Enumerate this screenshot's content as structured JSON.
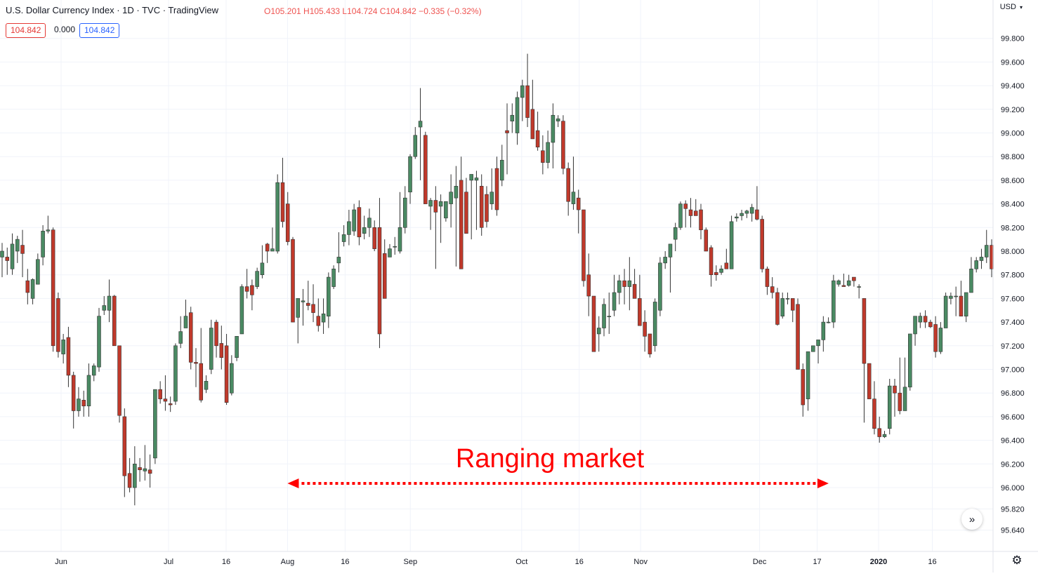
{
  "header": {
    "title": "U.S. Dollar Currency Index · 1D · TVC · TradingView",
    "ohlc": "O105.201 H105.433 L104.724 C104.842 −0.335 (−0.32%)",
    "price_badge": "104.842",
    "change_value": "0.000",
    "price_badge_2": "104.842",
    "currency_label": "USD",
    "currency_icon": "chevron-down-icon"
  },
  "controls": {
    "scroll_icon": "double-chevron-right-icon",
    "scroll_glyph": "»",
    "settings_icon": "gear-icon",
    "settings_glyph": "⚙"
  },
  "annotation": {
    "text": "Ranging market",
    "x_start": "2019-08-01",
    "x_end": "2019-12-20",
    "y": 96.0,
    "color": "#ff0000"
  },
  "chart_data": {
    "type": "candlestick",
    "title": "U.S. Dollar Currency Index · 1D · TVC · TradingView",
    "xlabel": "",
    "ylabel": "",
    "x_range": [
      "2019-05-20",
      "2020-01-30"
    ],
    "ylim": [
      95.5,
      100.1
    ],
    "y_ticks": [
      95.64,
      95.82,
      96.0,
      96.2,
      96.4,
      96.6,
      96.8,
      97.0,
      97.2,
      97.4,
      97.6,
      97.8,
      98.0,
      98.2,
      98.4,
      98.6,
      98.8,
      99.0,
      99.2,
      99.4,
      99.6,
      99.8
    ],
    "y_tick_labels": [
      "95.640",
      "95.820",
      "96.000",
      "96.200",
      "96.400",
      "96.600",
      "96.800",
      "97.000",
      "97.200",
      "97.400",
      "97.600",
      "97.800",
      "98.000",
      "98.200",
      "98.400",
      "98.600",
      "98.800",
      "99.000",
      "99.200",
      "99.400",
      "99.600",
      "99.800"
    ],
    "x_ticks": [
      {
        "label": "Jun",
        "date": "2019-06-03"
      },
      {
        "label": "Jul",
        "date": "2019-07-01"
      },
      {
        "label": "16",
        "date": "2019-07-16"
      },
      {
        "label": "Aug",
        "date": "2019-08-01"
      },
      {
        "label": "16",
        "date": "2019-08-16"
      },
      {
        "label": "Sep",
        "date": "2019-09-02"
      },
      {
        "label": "Oct",
        "date": "2019-10-01"
      },
      {
        "label": "16",
        "date": "2019-10-16"
      },
      {
        "label": "Nov",
        "date": "2019-11-01"
      },
      {
        "label": "Dec",
        "date": "2019-12-02"
      },
      {
        "label": "17",
        "date": "2019-12-17"
      },
      {
        "label": "2020",
        "date": "2020-01-02",
        "bold": true
      },
      {
        "label": "16",
        "date": "2020-01-16"
      }
    ],
    "colors": {
      "up": "#4a8a63",
      "down": "#c0392b",
      "grid": "#f0f3fa",
      "axis_text": "#131722"
    },
    "grid": true,
    "candles_ohlc": [
      [
        97.95,
        98.07,
        97.78,
        98.0
      ],
      [
        97.95,
        98.03,
        97.8,
        97.92
      ],
      [
        97.85,
        98.15,
        97.8,
        98.06
      ],
      [
        98.0,
        98.13,
        97.9,
        98.1
      ],
      [
        98.05,
        98.18,
        97.78,
        97.98
      ],
      [
        97.75,
        97.85,
        97.55,
        97.65
      ],
      [
        97.6,
        97.77,
        97.55,
        97.76
      ],
      [
        97.72,
        97.98,
        97.72,
        97.93
      ],
      [
        97.95,
        98.22,
        97.88,
        98.17
      ],
      [
        98.17,
        98.3,
        98.15,
        98.18
      ],
      [
        98.18,
        98.2,
        97.15,
        97.2
      ],
      [
        97.6,
        97.65,
        97.1,
        97.15
      ],
      [
        97.13,
        97.3,
        97.05,
        97.25
      ],
      [
        97.27,
        97.36,
        96.85,
        96.95
      ],
      [
        96.95,
        96.98,
        96.5,
        96.65
      ],
      [
        96.65,
        96.85,
        96.6,
        96.75
      ],
      [
        96.74,
        96.82,
        96.6,
        96.69
      ],
      [
        96.69,
        97.05,
        96.6,
        96.95
      ],
      [
        96.95,
        97.05,
        96.9,
        97.03
      ],
      [
        97.02,
        97.52,
        96.98,
        97.45
      ],
      [
        97.5,
        97.62,
        97.46,
        97.54
      ],
      [
        97.5,
        97.76,
        97.4,
        97.62
      ],
      [
        97.62,
        97.63,
        97.2,
        97.2
      ],
      [
        97.2,
        97.2,
        96.55,
        96.61
      ],
      [
        96.6,
        96.67,
        95.92,
        96.1
      ],
      [
        96.12,
        96.25,
        95.96,
        96.0
      ],
      [
        96.0,
        96.35,
        95.85,
        96.2
      ],
      [
        96.17,
        96.25,
        96.05,
        96.15
      ],
      [
        96.14,
        96.36,
        96.06,
        96.16
      ],
      [
        96.15,
        96.28,
        96.0,
        96.12
      ],
      [
        96.25,
        96.82,
        96.2,
        96.83
      ],
      [
        96.83,
        96.9,
        96.71,
        96.75
      ],
      [
        96.75,
        96.95,
        96.65,
        96.73
      ],
      [
        96.71,
        96.77,
        96.64,
        96.7
      ],
      [
        96.73,
        97.22,
        96.7,
        97.2
      ],
      [
        97.22,
        97.45,
        97.18,
        97.32
      ],
      [
        97.35,
        97.59,
        97.35,
        97.45
      ],
      [
        97.48,
        97.53,
        97.0,
        97.06
      ],
      [
        97.06,
        97.18,
        96.85,
        97.05
      ],
      [
        97.05,
        97.35,
        96.72,
        96.74
      ],
      [
        96.83,
        96.95,
        96.8,
        96.9
      ],
      [
        97.0,
        97.42,
        96.96,
        97.35
      ],
      [
        97.4,
        97.42,
        97.1,
        97.2
      ],
      [
        97.22,
        97.37,
        97.0,
        97.1
      ],
      [
        97.2,
        97.3,
        96.7,
        96.72
      ],
      [
        96.8,
        97.12,
        96.78,
        97.05
      ],
      [
        97.1,
        97.27,
        97.07,
        97.28
      ],
      [
        97.3,
        97.72,
        97.35,
        97.7
      ],
      [
        97.7,
        97.85,
        97.6,
        97.66
      ],
      [
        97.71,
        97.76,
        97.5,
        97.63
      ],
      [
        97.7,
        97.86,
        97.68,
        97.83
      ],
      [
        97.8,
        98.05,
        97.77,
        97.9
      ],
      [
        98.06,
        98.07,
        97.9,
        98.0
      ],
      [
        98.0,
        98.2,
        98.0,
        98.02
      ],
      [
        98.0,
        98.65,
        97.98,
        98.58
      ],
      [
        98.58,
        98.79,
        98.2,
        98.25
      ],
      [
        98.4,
        98.5,
        98.05,
        98.08
      ],
      [
        98.1,
        98.12,
        97.4,
        97.4
      ],
      [
        97.44,
        97.6,
        97.22,
        97.6
      ],
      [
        97.57,
        97.68,
        97.37,
        97.58
      ],
      [
        97.56,
        97.75,
        97.5,
        97.54
      ],
      [
        97.55,
        97.72,
        97.4,
        97.48
      ],
      [
        97.45,
        97.6,
        97.32,
        97.37
      ],
      [
        97.4,
        97.6,
        97.3,
        97.47
      ],
      [
        97.45,
        97.82,
        97.35,
        97.78
      ],
      [
        97.7,
        97.88,
        97.68,
        97.85
      ],
      [
        97.9,
        98.16,
        97.82,
        97.95
      ],
      [
        98.08,
        98.22,
        98.04,
        98.14
      ],
      [
        98.14,
        98.35,
        98.05,
        98.25
      ],
      [
        98.17,
        98.4,
        98.13,
        98.35
      ],
      [
        98.37,
        98.43,
        98.05,
        98.12
      ],
      [
        98.15,
        98.3,
        98.1,
        98.2
      ],
      [
        98.2,
        98.36,
        98.12,
        98.28
      ],
      [
        98.2,
        98.26,
        98.0,
        98.02
      ],
      [
        98.2,
        98.45,
        97.18,
        97.3
      ],
      [
        97.98,
        98.1,
        97.6,
        97.6
      ],
      [
        97.95,
        98.06,
        97.98,
        98.02
      ],
      [
        98.04,
        98.12,
        97.97,
        98.04
      ],
      [
        98.0,
        98.5,
        97.98,
        98.2
      ],
      [
        98.2,
        98.55,
        98.15,
        98.45
      ],
      [
        98.5,
        98.82,
        98.4,
        98.8
      ],
      [
        98.8,
        99.05,
        98.78,
        98.98
      ],
      [
        99.05,
        99.38,
        98.6,
        99.1
      ],
      [
        98.98,
        99.01,
        98.4,
        98.4
      ],
      [
        98.38,
        98.45,
        98.18,
        98.43
      ],
      [
        98.43,
        98.55,
        97.85,
        98.33
      ],
      [
        98.38,
        98.48,
        98.07,
        98.42
      ],
      [
        98.28,
        98.42,
        98.25,
        98.42
      ],
      [
        98.4,
        98.65,
        98.2,
        98.5
      ],
      [
        98.45,
        98.72,
        97.87,
        98.55
      ],
      [
        98.6,
        98.8,
        97.86,
        97.85
      ],
      [
        98.5,
        98.62,
        98.15,
        98.15
      ],
      [
        98.6,
        98.65,
        98.1,
        98.65
      ],
      [
        98.6,
        98.68,
        98.18,
        98.62
      ],
      [
        98.55,
        98.65,
        98.13,
        98.2
      ],
      [
        98.48,
        98.55,
        98.2,
        98.25
      ],
      [
        98.4,
        98.7,
        98.35,
        98.5
      ],
      [
        98.7,
        98.8,
        98.3,
        98.35
      ],
      [
        98.6,
        98.9,
        98.55,
        98.77
      ],
      [
        99.02,
        99.25,
        98.65,
        99.0
      ],
      [
        99.1,
        99.25,
        99.0,
        99.15
      ],
      [
        99.0,
        99.35,
        98.9,
        99.3
      ],
      [
        99.3,
        99.45,
        99.1,
        99.4
      ],
      [
        99.4,
        99.67,
        99.05,
        99.13
      ],
      [
        99.2,
        99.45,
        98.95,
        98.95
      ],
      [
        99.02,
        99.18,
        98.85,
        98.88
      ],
      [
        98.85,
        98.98,
        98.65,
        98.75
      ],
      [
        98.75,
        99.02,
        98.7,
        98.92
      ],
      [
        98.92,
        99.25,
        98.7,
        99.15
      ],
      [
        99.1,
        99.15,
        99.05,
        99.12
      ],
      [
        99.1,
        99.15,
        98.65,
        98.7
      ],
      [
        98.7,
        98.75,
        98.3,
        98.42
      ],
      [
        98.4,
        98.8,
        98.35,
        98.5
      ],
      [
        98.45,
        98.52,
        98.15,
        98.35
      ],
      [
        98.35,
        98.35,
        97.7,
        97.75
      ],
      [
        97.8,
        97.98,
        97.45,
        97.62
      ],
      [
        97.62,
        97.62,
        97.15,
        97.15
      ],
      [
        97.3,
        97.45,
        97.15,
        97.35
      ],
      [
        97.35,
        97.6,
        97.28,
        97.55
      ],
      [
        97.45,
        97.65,
        97.3,
        97.45
      ],
      [
        97.5,
        97.8,
        97.45,
        97.65
      ],
      [
        97.65,
        97.8,
        97.55,
        97.75
      ],
      [
        97.75,
        97.85,
        97.55,
        97.7
      ],
      [
        97.7,
        97.95,
        97.5,
        97.75
      ],
      [
        97.72,
        97.85,
        97.65,
        97.6
      ],
      [
        97.6,
        97.8,
        97.38,
        97.37
      ],
      [
        97.4,
        97.5,
        97.15,
        97.28
      ],
      [
        97.3,
        97.3,
        97.1,
        97.13
      ],
      [
        97.2,
        97.6,
        97.15,
        97.57
      ],
      [
        97.5,
        97.95,
        97.45,
        97.9
      ],
      [
        97.9,
        98.0,
        97.85,
        97.95
      ],
      [
        97.95,
        98.05,
        97.65,
        98.06
      ],
      [
        98.1,
        98.24,
        98.0,
        98.2
      ],
      [
        98.2,
        98.42,
        98.18,
        98.4
      ],
      [
        98.4,
        98.43,
        98.2,
        98.36
      ],
      [
        98.35,
        98.45,
        98.2,
        98.3
      ],
      [
        98.34,
        98.44,
        98.3,
        98.3
      ],
      [
        98.35,
        98.4,
        98.1,
        98.18
      ],
      [
        98.18,
        98.2,
        98.0,
        98.0
      ],
      [
        98.03,
        98.05,
        97.7,
        97.8
      ],
      [
        97.82,
        97.88,
        97.75,
        97.8
      ],
      [
        97.82,
        97.88,
        97.8,
        97.85
      ],
      [
        97.9,
        98.02,
        97.85,
        97.85
      ],
      [
        97.85,
        98.3,
        97.95,
        98.25
      ],
      [
        98.28,
        98.32,
        98.25,
        98.29
      ],
      [
        98.3,
        98.35,
        98.26,
        98.32
      ],
      [
        98.32,
        98.35,
        98.28,
        98.34
      ],
      [
        98.32,
        98.4,
        98.25,
        98.37
      ],
      [
        98.35,
        98.55,
        98.26,
        98.27
      ],
      [
        98.27,
        98.3,
        97.82,
        97.85
      ],
      [
        97.85,
        97.87,
        97.63,
        97.7
      ],
      [
        97.7,
        97.78,
        97.6,
        97.65
      ],
      [
        97.65,
        97.69,
        97.37,
        97.38
      ],
      [
        97.45,
        97.65,
        97.43,
        97.6
      ],
      [
        97.6,
        97.65,
        97.55,
        97.6
      ],
      [
        97.6,
        97.6,
        97.4,
        97.5
      ],
      [
        97.55,
        97.6,
        97.05,
        97.0
      ],
      [
        97.0,
        97.05,
        96.6,
        96.7
      ],
      [
        96.75,
        97.15,
        96.65,
        97.15
      ],
      [
        97.15,
        97.2,
        97.15,
        97.2
      ],
      [
        97.2,
        97.2,
        97.05,
        97.25
      ],
      [
        97.25,
        97.45,
        97.15,
        97.4
      ],
      [
        97.4,
        97.44,
        97.39,
        97.4
      ],
      [
        97.4,
        97.8,
        97.35,
        97.75
      ],
      [
        97.72,
        97.76,
        97.7,
        97.75
      ],
      [
        97.71,
        97.81,
        97.7,
        97.7
      ],
      [
        97.71,
        97.8,
        97.7,
        97.75
      ],
      [
        97.78,
        97.78,
        97.7,
        97.75
      ],
      [
        97.7,
        97.72,
        97.6,
        97.7
      ],
      [
        97.6,
        97.6,
        96.55,
        97.05
      ],
      [
        97.05,
        97.05,
        96.75,
        96.75
      ],
      [
        96.75,
        96.9,
        96.45,
        96.5
      ],
      [
        96.5,
        96.6,
        96.38,
        96.43
      ],
      [
        96.43,
        96.48,
        96.42,
        96.45
      ],
      [
        96.5,
        96.92,
        96.45,
        96.86
      ],
      [
        96.86,
        96.92,
        96.6,
        96.8
      ],
      [
        96.8,
        97.1,
        96.62,
        96.65
      ],
      [
        96.65,
        97.1,
        96.65,
        96.85
      ],
      [
        96.85,
        97.22,
        96.82,
        97.3
      ],
      [
        97.3,
        97.4,
        97.2,
        97.45
      ],
      [
        97.4,
        97.48,
        97.35,
        97.45
      ],
      [
        97.45,
        97.5,
        97.35,
        97.4
      ],
      [
        97.4,
        97.42,
        97.35,
        97.36
      ],
      [
        97.38,
        97.45,
        97.1,
        97.15
      ],
      [
        97.15,
        97.4,
        97.13,
        97.35
      ],
      [
        97.35,
        97.65,
        97.35,
        97.62
      ],
      [
        97.6,
        97.65,
        97.55,
        97.62
      ],
      [
        97.62,
        97.7,
        97.45,
        97.62
      ],
      [
        97.62,
        97.75,
        97.58,
        97.45
      ],
      [
        97.45,
        97.65,
        97.4,
        97.65
      ],
      [
        97.65,
        97.95,
        97.75,
        97.85
      ],
      [
        97.85,
        97.95,
        97.82,
        97.92
      ],
      [
        97.92,
        98.02,
        97.85,
        97.95
      ],
      [
        97.95,
        98.18,
        97.9,
        98.05
      ],
      [
        98.05,
        98.1,
        97.78,
        97.85
      ]
    ]
  }
}
